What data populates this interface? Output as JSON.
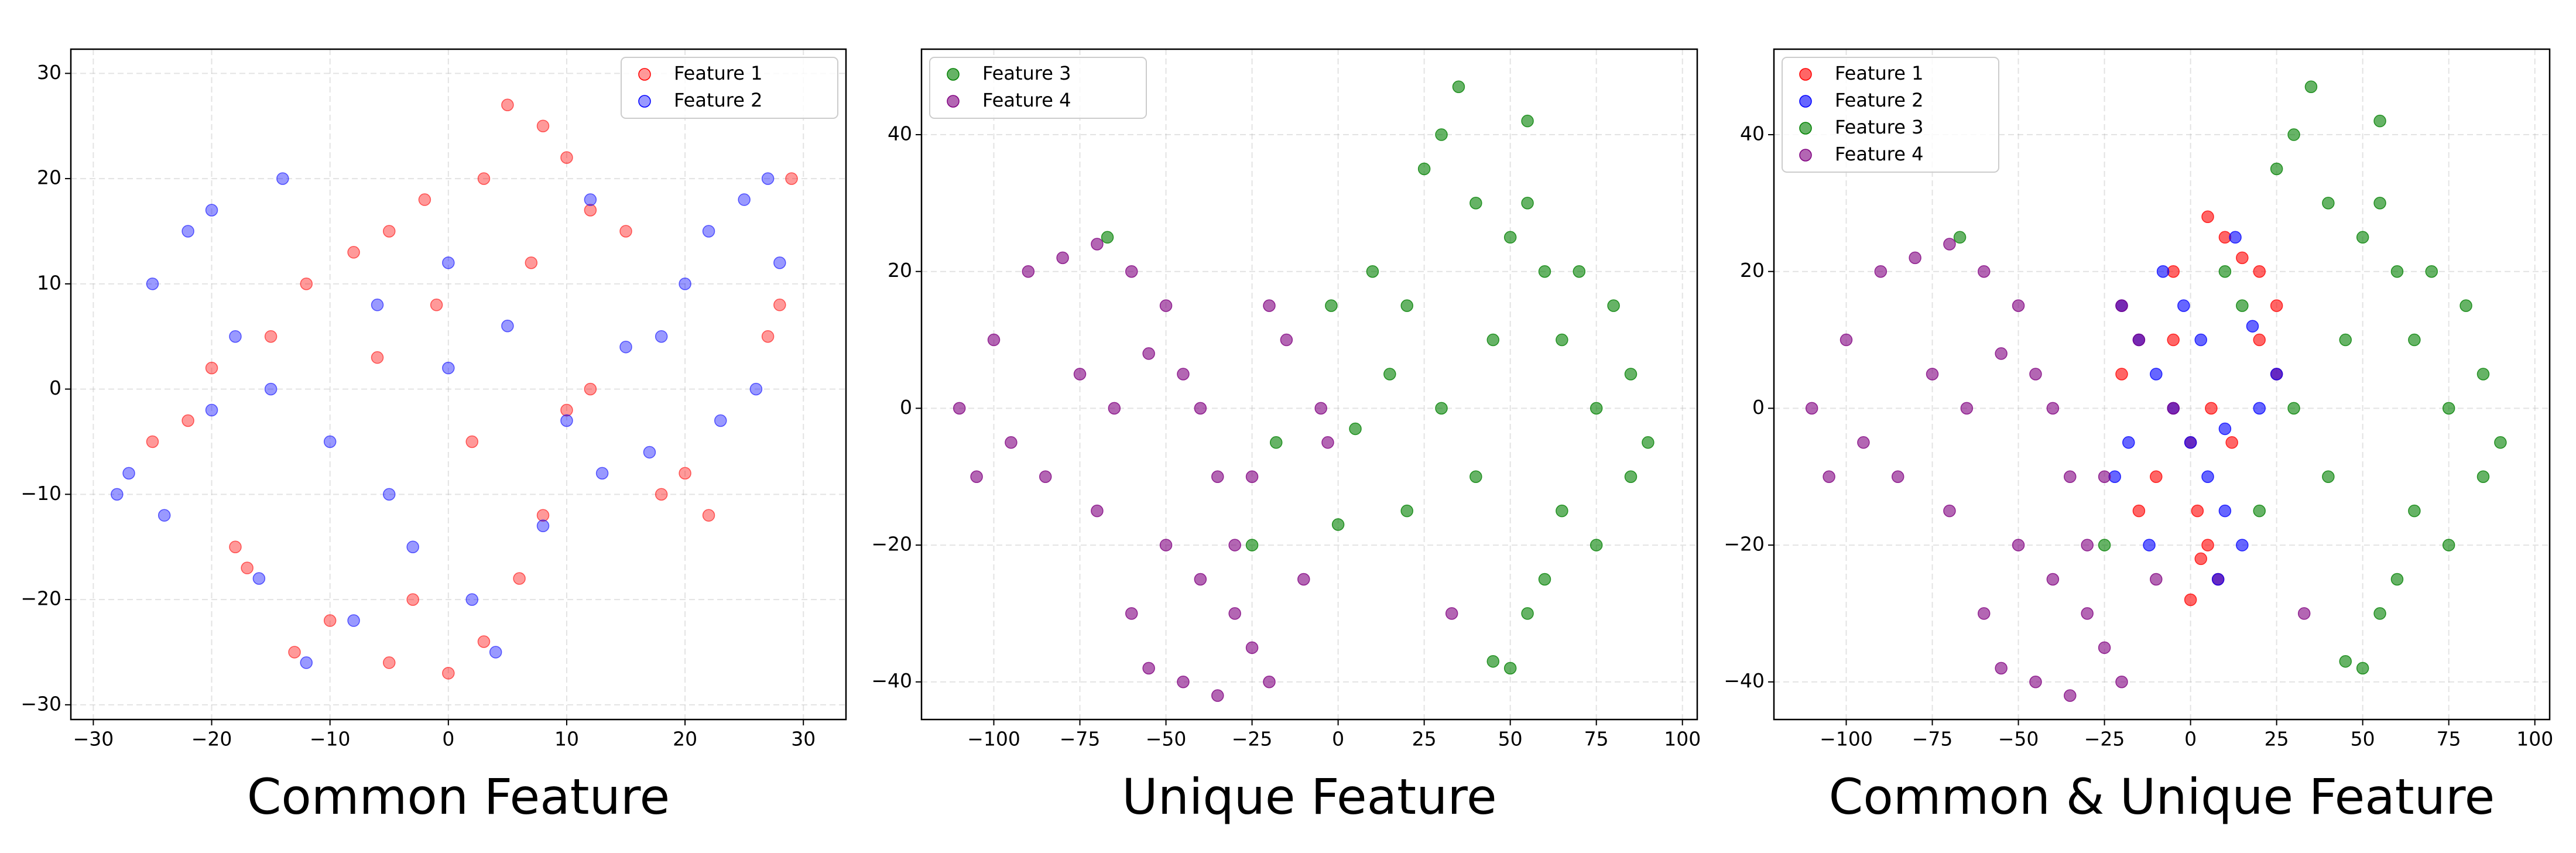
{
  "chart_data": [
    {
      "type": "scatter",
      "title": "Common Feature",
      "grid": true,
      "legend": "upper right",
      "alpha": 0.4,
      "xlim": [
        -31.9,
        33.6
      ],
      "ylim": [
        -31.4,
        32.3
      ],
      "xticks": [
        {
          "value": -30,
          "label": "−30"
        },
        {
          "value": -20,
          "label": "−20"
        },
        {
          "value": -10,
          "label": "−10"
        },
        0,
        10,
        20,
        30
      ],
      "yticks": [
        {
          "value": -30,
          "label": "−30"
        },
        {
          "value": -20,
          "label": "−20"
        },
        {
          "value": -10,
          "label": "−10"
        },
        0,
        10,
        20,
        30
      ],
      "series": [
        {
          "name": "Feature 1",
          "color": "#ff0000",
          "x": [
            5,
            8,
            10,
            3,
            -2,
            -5,
            7,
            12,
            -8,
            -12,
            -15,
            -20,
            -22,
            -18,
            -10,
            -5,
            0,
            3,
            -13,
            -3,
            2,
            18,
            20,
            22,
            28,
            29,
            27,
            15,
            10,
            -6,
            -25,
            -17,
            6,
            12,
            -1,
            8
          ],
          "y": [
            27,
            25,
            22,
            20,
            18,
            15,
            12,
            17,
            13,
            10,
            5,
            2,
            -3,
            -15,
            -22,
            -26,
            -27,
            -24,
            -25,
            -20,
            -5,
            -10,
            -8,
            -12,
            8,
            20,
            5,
            15,
            -2,
            3,
            -5,
            -17,
            -18,
            0,
            8,
            -12
          ]
        },
        {
          "name": "Feature 2",
          "color": "#0000ff",
          "x": [
            -25,
            -22,
            -20,
            -18,
            -27,
            -24,
            -15,
            -10,
            -5,
            0,
            5,
            10,
            15,
            20,
            22,
            25,
            27,
            28,
            26,
            23,
            18,
            -8,
            -12,
            -16,
            -3,
            2,
            8,
            13,
            -20,
            -28,
            0,
            -6,
            12,
            4,
            17,
            -14
          ],
          "y": [
            10,
            15,
            17,
            5,
            -8,
            -12,
            0,
            -5,
            -10,
            2,
            6,
            -3,
            4,
            10,
            15,
            18,
            20,
            12,
            0,
            -3,
            5,
            -22,
            -26,
            -18,
            -15,
            -20,
            -13,
            -8,
            -2,
            -10,
            12,
            8,
            18,
            -25,
            -6,
            20
          ]
        }
      ]
    },
    {
      "type": "scatter",
      "title": "Unique Feature",
      "grid": true,
      "legend": "upper left",
      "alpha": 0.6,
      "xlim": [
        -121,
        104.3
      ],
      "ylim": [
        -45.5,
        52.5
      ],
      "xticks": [
        {
          "value": -100,
          "label": "−100"
        },
        {
          "value": -75,
          "label": "−75"
        },
        {
          "value": -50,
          "label": "−50"
        },
        {
          "value": -25,
          "label": "−25"
        },
        0,
        25,
        50,
        75,
        100
      ],
      "yticks": [
        {
          "value": -40,
          "label": "−40"
        },
        {
          "value": -20,
          "label": "−20"
        },
        0,
        20,
        40
      ],
      "series": [
        {
          "name": "Feature 3",
          "color": "#008000",
          "x": [
            35,
            30,
            25,
            40,
            55,
            50,
            60,
            20,
            15,
            45,
            70,
            80,
            85,
            90,
            65,
            75,
            55,
            45,
            50,
            60,
            40,
            30,
            20,
            85,
            75,
            65,
            55,
            10,
            -2,
            -67,
            -25,
            -18,
            0,
            5
          ],
          "y": [
            47,
            40,
            35,
            30,
            42,
            25,
            20,
            15,
            5,
            10,
            20,
            15,
            5,
            -5,
            -15,
            -20,
            -30,
            -37,
            -38,
            -25,
            -10,
            0,
            -15,
            -10,
            0,
            10,
            30,
            20,
            15,
            25,
            -20,
            -5,
            -17,
            -3
          ]
        },
        {
          "name": "Feature 4",
          "color": "#800080",
          "x": [
            -110,
            -100,
            -90,
            -80,
            -70,
            -60,
            -50,
            -45,
            -40,
            -35,
            -30,
            -25,
            -20,
            -10,
            -5,
            -3,
            -15,
            -30,
            -45,
            -55,
            -60,
            -70,
            -85,
            -95,
            -105,
            -75,
            -50,
            -40,
            -35,
            -25,
            -55,
            -65,
            -20,
            33
          ],
          "y": [
            0,
            10,
            20,
            22,
            24,
            20,
            15,
            5,
            0,
            -10,
            -20,
            -35,
            -40,
            -25,
            0,
            -5,
            10,
            -30,
            -40,
            -38,
            -30,
            -15,
            -10,
            -5,
            -10,
            5,
            -20,
            -25,
            -42,
            -10,
            8,
            0,
            15,
            -30
          ]
        }
      ]
    },
    {
      "type": "scatter",
      "title": "Common & Unique Feature",
      "grid": true,
      "legend": "upper left",
      "alpha": 0.6,
      "xlim": [
        -121,
        104.3
      ],
      "ylim": [
        -45.5,
        52.5
      ],
      "xticks": [
        {
          "value": -100,
          "label": "−100"
        },
        {
          "value": -75,
          "label": "−75"
        },
        {
          "value": -50,
          "label": "−50"
        },
        {
          "value": -25,
          "label": "−25"
        },
        0,
        25,
        50,
        75,
        100
      ],
      "yticks": [
        {
          "value": -40,
          "label": "−40"
        },
        {
          "value": -20,
          "label": "−20"
        },
        0,
        20,
        40
      ],
      "series": [
        {
          "name": "Feature 1",
          "color": "#ff0000",
          "x": [
            5,
            10,
            15,
            20,
            25,
            -5,
            0,
            2,
            5,
            8,
            -10,
            -15,
            -20,
            -5,
            0,
            3,
            6,
            20,
            25,
            12
          ],
          "y": [
            28,
            25,
            22,
            20,
            15,
            10,
            -5,
            -15,
            -20,
            -25,
            -10,
            -15,
            5,
            20,
            -28,
            -22,
            0,
            10,
            5,
            -5
          ]
        },
        {
          "name": "Feature 2",
          "color": "#0000ff",
          "x": [
            -20,
            -15,
            -10,
            -5,
            0,
            5,
            10,
            15,
            20,
            25,
            -18,
            -12,
            -8,
            -2,
            3,
            8,
            13,
            18,
            -22,
            10
          ],
          "y": [
            15,
            10,
            5,
            0,
            -5,
            -10,
            -15,
            -20,
            0,
            5,
            -5,
            -20,
            20,
            15,
            10,
            -25,
            25,
            12,
            -10,
            -3
          ]
        },
        {
          "name": "Feature 3",
          "color": "#008000",
          "x": [
            35,
            30,
            25,
            40,
            55,
            50,
            60,
            20,
            45,
            70,
            80,
            85,
            90,
            65,
            75,
            55,
            45,
            50,
            60,
            40,
            30,
            85,
            75,
            65,
            55,
            10,
            15,
            -67,
            -25
          ],
          "y": [
            47,
            40,
            35,
            30,
            42,
            25,
            20,
            -15,
            10,
            20,
            15,
            5,
            -5,
            -15,
            -20,
            -30,
            -37,
            -38,
            -25,
            -10,
            0,
            -10,
            0,
            10,
            30,
            20,
            15,
            25,
            -20
          ]
        },
        {
          "name": "Feature 4",
          "color": "#800080",
          "x": [
            -110,
            -100,
            -90,
            -80,
            -70,
            -60,
            -50,
            -45,
            -40,
            -35,
            -30,
            -25,
            -20,
            -10,
            -5,
            -15,
            -30,
            -45,
            -55,
            -60,
            -70,
            -85,
            -95,
            -105,
            -75,
            -50,
            -40,
            -35,
            -25,
            -55,
            -65,
            -20,
            33
          ],
          "y": [
            0,
            10,
            20,
            22,
            24,
            20,
            15,
            5,
            0,
            -10,
            -20,
            -35,
            -40,
            -25,
            0,
            10,
            -30,
            -40,
            -38,
            -30,
            -15,
            -10,
            -5,
            -10,
            5,
            -20,
            -25,
            -42,
            -10,
            8,
            0,
            15,
            -30
          ]
        }
      ]
    }
  ]
}
